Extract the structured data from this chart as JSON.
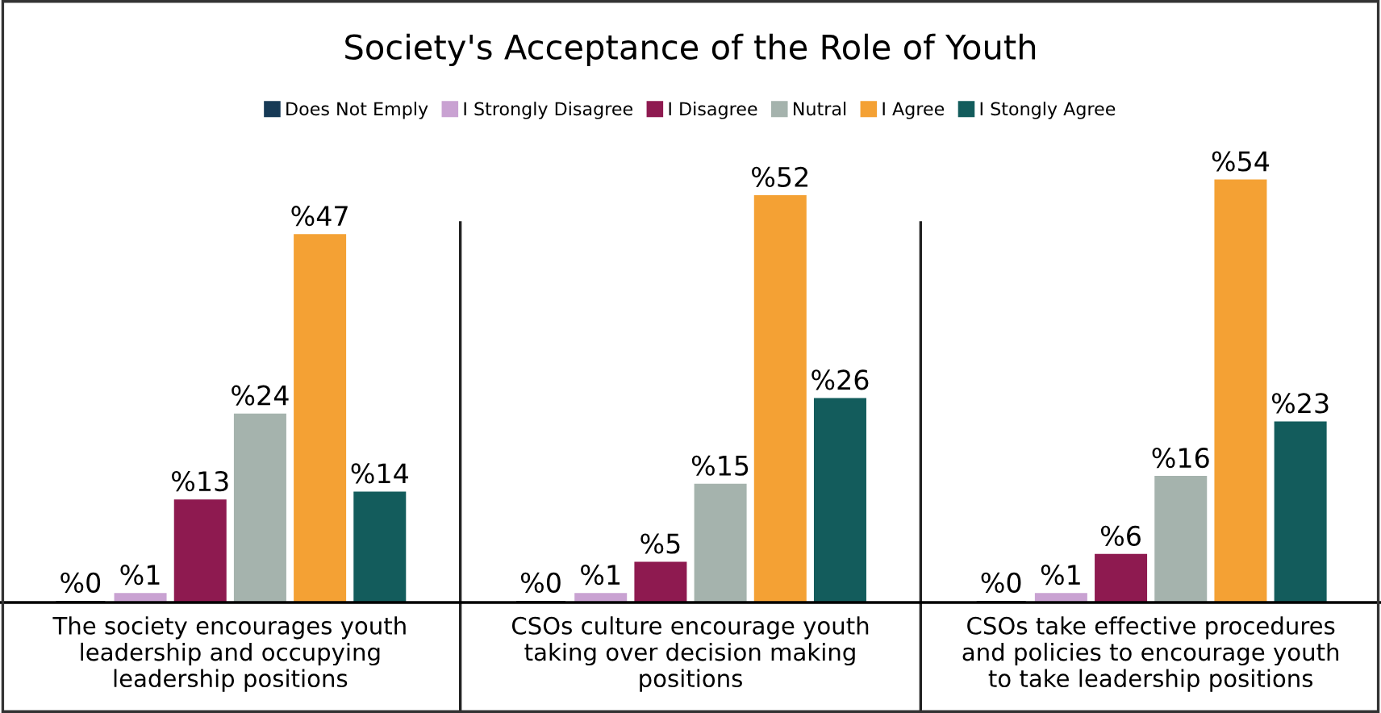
{
  "chart_data": {
    "type": "bar",
    "title": "Society's Acceptance of the Role of Youth",
    "categories": [
      "The society encourages youth\nleadership and occupying\nleadership positions",
      "CSOs culture encourage youth\ntaking over decision making\npositions",
      "CSOs take effective procedures\nand policies to encourage youth\nto take leadership positions"
    ],
    "series": [
      {
        "name": "Does Not Emply",
        "color": "#173a56",
        "values": [
          0,
          0,
          0
        ],
        "value_labels": [
          "%0",
          "%0",
          "%0"
        ]
      },
      {
        "name": "I Strongly Disagree",
        "color": "#c9a2d2",
        "values": [
          1,
          1,
          1
        ],
        "value_labels": [
          "%1",
          "%1",
          "%1"
        ]
      },
      {
        "name": "I Disagree",
        "color": "#8e1a50",
        "values": [
          13,
          5,
          6
        ],
        "value_labels": [
          "%13",
          "%5",
          "%6"
        ]
      },
      {
        "name": "Nutral",
        "color": "#a5b3ad",
        "values": [
          24,
          15,
          16
        ],
        "value_labels": [
          "%24",
          "%15",
          "%16"
        ]
      },
      {
        "name": "I Agree",
        "color": "#f4a134",
        "values": [
          47,
          52,
          54
        ],
        "value_labels": [
          "%47",
          "%52",
          "%54"
        ]
      },
      {
        "name": "I Stongly Agree",
        "color": "#135c5c",
        "values": [
          14,
          26,
          23
        ],
        "value_labels": [
          "%14",
          "%26",
          "%23"
        ]
      }
    ],
    "legend": "top"
  }
}
